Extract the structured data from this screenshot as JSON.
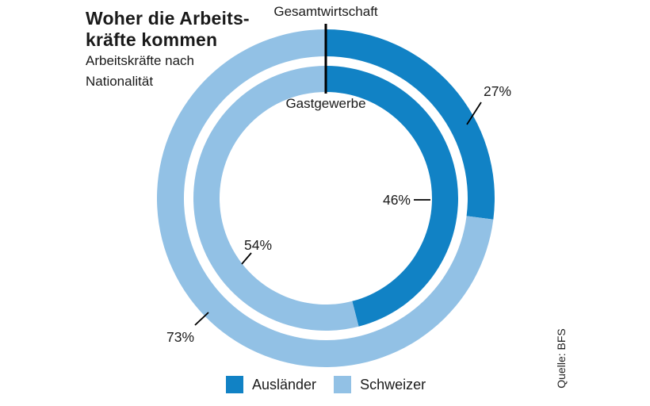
{
  "header": {
    "title": "Woher die Arbeits-\nkräfte kommen",
    "subtitle": "Arbeitskräfte nach\nNationalität"
  },
  "source": "Quelle: BFS",
  "chart_data": {
    "type": "pie",
    "subtype": "nested-donut",
    "title": "Woher die Arbeitskräfte kommen",
    "subtitle": "Arbeitskräfte nach Nationalität",
    "unit": "%",
    "categories": [
      "Ausländer",
      "Schweizer"
    ],
    "colors": [
      "#1182C5",
      "#92C1E5"
    ],
    "legend_position": "bottom",
    "rings": [
      {
        "name": "Gesamtwirtschaft",
        "position": "outer",
        "values": [
          27,
          73
        ]
      },
      {
        "name": "Gastgewerbe",
        "position": "inner",
        "values": [
          46,
          54
        ]
      }
    ],
    "value_labels": {
      "gesamtwirtschaft_auslaender": "27%",
      "gesamtwirtschaft_schweizer": "73%",
      "gastgewerbe_auslaender": "46%",
      "gastgewerbe_schweizer": "54%"
    }
  }
}
